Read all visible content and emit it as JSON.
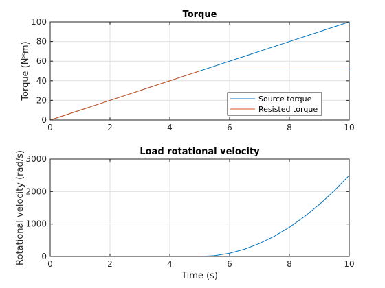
{
  "chart_data": [
    {
      "type": "line",
      "title": "Torque",
      "xlabel": "",
      "ylabel": "Torque (N*m)",
      "xlim": [
        0,
        10
      ],
      "ylim": [
        0,
        100
      ],
      "xticks": [
        0,
        2,
        4,
        6,
        8,
        10
      ],
      "yticks": [
        0,
        20,
        40,
        60,
        80,
        100
      ],
      "grid": true,
      "legend_position": "bottom-right",
      "series": [
        {
          "name": "Source torque",
          "color": "#0072BD",
          "x": [
            0,
            10
          ],
          "y": [
            0,
            100
          ]
        },
        {
          "name": "Resisted torque",
          "color": "#D95319",
          "x": [
            0,
            5,
            10
          ],
          "y": [
            0,
            50,
            50
          ]
        }
      ]
    },
    {
      "type": "line",
      "title": "Load rotational velocity",
      "xlabel": "Time (s)",
      "ylabel": "Rotational velocity (rad/s)",
      "xlim": [
        0,
        10
      ],
      "ylim": [
        0,
        3000
      ],
      "xticks": [
        0,
        2,
        4,
        6,
        8,
        10
      ],
      "yticks": [
        0,
        1000,
        2000,
        3000
      ],
      "grid": true,
      "series": [
        {
          "color": "#0072BD",
          "x": [
            0,
            1,
            2,
            3,
            4,
            5,
            5.5,
            6,
            6.5,
            7,
            7.5,
            8,
            8.5,
            9,
            9.5,
            10
          ],
          "y": [
            0,
            0,
            0,
            0,
            0,
            0,
            25,
            100,
            225,
            400,
            625,
            900,
            1225,
            1600,
            2025,
            2500
          ]
        }
      ]
    }
  ]
}
